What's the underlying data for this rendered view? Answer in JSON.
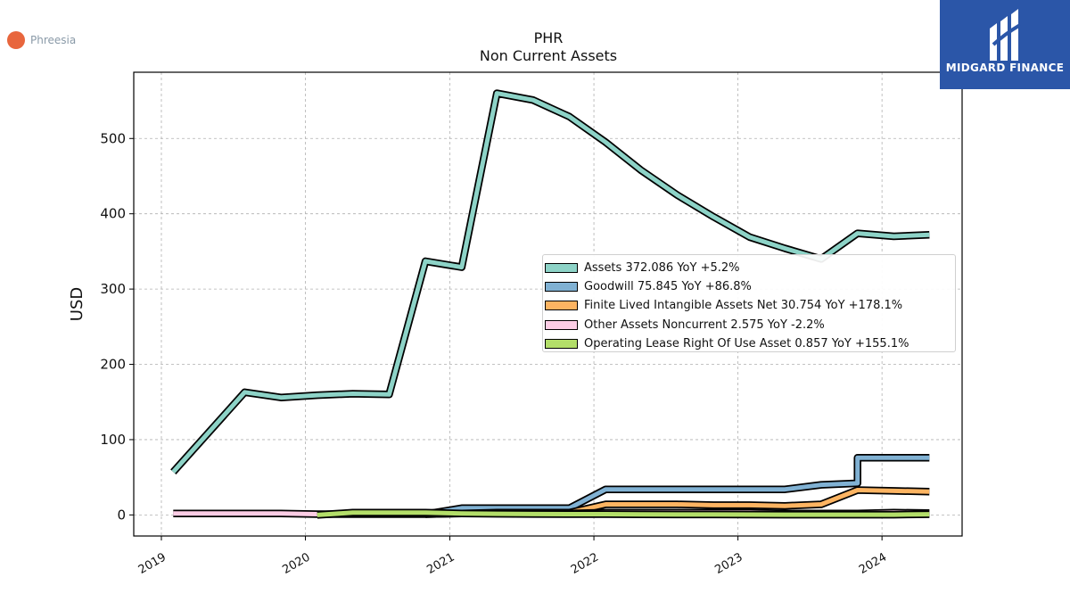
{
  "brand": {
    "name": "Phreesia",
    "dot_color": "#e8663d"
  },
  "watermark": {
    "text": "MIDGARD FINANCE",
    "bg_color": "#2b56a8"
  },
  "chart_data": {
    "type": "line",
    "title": "PHR",
    "subtitle": "Non Current  Assets",
    "ylabel": "USD",
    "xlabel": "",
    "ylim": [
      -28,
      588
    ],
    "xlim": [
      "2018-10-23",
      "2024-07-22"
    ],
    "x_ticks": [
      "2019",
      "2020",
      "2021",
      "2022",
      "2023",
      "2024"
    ],
    "y_ticks": [
      0,
      100,
      200,
      300,
      400,
      500
    ],
    "grid": true,
    "legend_position": "center-right",
    "series": [
      {
        "name": "Assets",
        "legend": "Assets  372.086 YoY +5.2%",
        "color": "#8dd3c7",
        "x": [
          "2019-01-31",
          "2019-07-31",
          "2019-10-31",
          "2020-01-31",
          "2020-04-30",
          "2020-07-31",
          "2020-10-31",
          "2021-01-31",
          "2021-04-30",
          "2021-07-31",
          "2021-10-31",
          "2022-01-31",
          "2022-04-30",
          "2022-07-31",
          "2022-10-31",
          "2023-01-31",
          "2023-04-30",
          "2023-07-31",
          "2023-10-31",
          "2024-01-31",
          "2024-04-30"
        ],
        "values": [
          57,
          163,
          156,
          159,
          161,
          160,
          337,
          329,
          560,
          551,
          529,
          495,
          458,
          425,
          396,
          369,
          354,
          340,
          374,
          370,
          372
        ]
      },
      {
        "name": "Goodwill",
        "legend": "Goodwill  75.845 YoY +86.8%",
        "color": "#80b1d3",
        "x": [
          "2020-10-31",
          "2021-01-31",
          "2021-04-30",
          "2021-07-31",
          "2021-10-31",
          "2022-01-31",
          "2022-04-30",
          "2022-07-31",
          "2022-10-31",
          "2023-01-31",
          "2023-04-30",
          "2023-07-31",
          "2023-10-31",
          "2023-10-31",
          "2024-01-31",
          "2024-04-30"
        ],
        "values": [
          1,
          9,
          9,
          9,
          9,
          34,
          34,
          34,
          34,
          34,
          34,
          40,
          42,
          76,
          76,
          76
        ]
      },
      {
        "name": "Finite Lived Intangible Assets Net",
        "legend": "Finite Lived Intangible Assets Net  30.754 YoY +178.1%",
        "color": "#fdb462",
        "x": [
          "2020-10-31",
          "2021-01-31",
          "2021-04-30",
          "2021-07-31",
          "2021-10-31",
          "2022-01-31",
          "2022-04-30",
          "2022-07-31",
          "2022-10-31",
          "2023-01-31",
          "2023-04-30",
          "2023-07-31",
          "2023-10-31",
          "2024-01-31",
          "2024-04-30"
        ],
        "values": [
          1,
          2,
          3,
          3,
          3,
          14,
          14,
          14,
          13,
          13,
          12,
          14,
          33,
          32,
          31
        ]
      },
      {
        "name": "Other Assets Noncurrent",
        "legend": "Other Assets Noncurrent  2.575 YoY -2.2%",
        "color": "#fccde5",
        "x": [
          "2019-01-31",
          "2019-04-30",
          "2019-07-31",
          "2019-10-31",
          "2020-01-31",
          "2020-04-30",
          "2020-07-31",
          "2020-10-31",
          "2021-01-31",
          "2021-04-30",
          "2021-07-31",
          "2021-10-31",
          "2022-01-31",
          "2022-04-30",
          "2022-07-31",
          "2022-10-31",
          "2023-01-31",
          "2023-04-30",
          "2023-07-31",
          "2023-10-31",
          "2024-01-31",
          "2024-04-30"
        ],
        "values": [
          2,
          2,
          2,
          2,
          1,
          1,
          1,
          1,
          2,
          2,
          2,
          2,
          3,
          3,
          3,
          3,
          3,
          2,
          2,
          2,
          3,
          2.6
        ]
      },
      {
        "name": "Operating Lease Right Of Use Asset",
        "legend": "Operating Lease Right Of Use Asset  0.857 YoY +155.1%",
        "color": "#b3de69",
        "x": [
          "2020-01-31",
          "2020-04-30",
          "2020-07-31",
          "2020-10-31",
          "2021-01-31",
          "2021-04-30",
          "2021-07-31",
          "2021-10-31",
          "2022-01-31",
          "2022-04-30",
          "2022-07-31",
          "2022-10-31",
          "2023-01-31",
          "2023-04-30",
          "2023-07-31",
          "2023-10-31",
          "2024-01-31",
          "2024-04-30"
        ],
        "values": [
          0,
          3,
          3,
          3,
          2,
          1.5,
          1.2,
          1,
          1,
          0.8,
          0.6,
          0.5,
          0.4,
          0.3,
          0.3,
          0.3,
          0.3,
          0.9
        ]
      }
    ]
  }
}
